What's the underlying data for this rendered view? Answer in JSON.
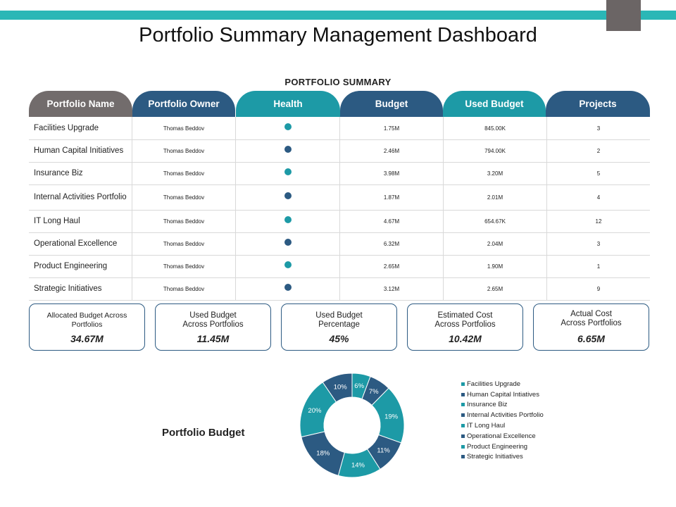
{
  "title": "Portfolio Summary Management Dashboard",
  "section_label": "PORTFOLIO SUMMARY",
  "colors": {
    "teal": "#1d9aa6",
    "navy": "#2c5a82",
    "gray": "#726c6c",
    "topbar": "#2ab7b6"
  },
  "columns": [
    {
      "label": "Portfolio Name",
      "color": "#726c6c"
    },
    {
      "label": "Portfolio Owner",
      "color": "#2c5a82"
    },
    {
      "label": "Health",
      "color": "#1d9aa6"
    },
    {
      "label": "Budget",
      "color": "#2c5a82"
    },
    {
      "label": "Used Budget",
      "color": "#1d9aa6"
    },
    {
      "label": "Projects",
      "color": "#2c5a82"
    }
  ],
  "rows": [
    {
      "name": "Facilities Upgrade",
      "owner": "Thomas Beddov",
      "health": "#1d9aa6",
      "budget": "1.75M",
      "used": "845.00K",
      "projects": "3"
    },
    {
      "name": "Human Capital Initiatives",
      "owner": "Thomas Beddov",
      "health": "#2c5a82",
      "budget": "2.46M",
      "used": "794.00K",
      "projects": "2"
    },
    {
      "name": "Insurance Biz",
      "owner": "Thomas Beddov",
      "health": "#1d9aa6",
      "budget": "3.98M",
      "used": "3.20M",
      "projects": "5"
    },
    {
      "name": "Internal Activities Portfolio",
      "owner": "Thomas Beddov",
      "health": "#2c5a82",
      "budget": "1.87M",
      "used": "2.01M",
      "projects": "4"
    },
    {
      "name": "IT Long Haul",
      "owner": "Thomas Beddov",
      "health": "#1d9aa6",
      "budget": "4.67M",
      "used": "654.67K",
      "projects": "12"
    },
    {
      "name": "Operational Excellence",
      "owner": "Thomas Beddov",
      "health": "#2c5a82",
      "budget": "6.32M",
      "used": "2.04M",
      "projects": "3"
    },
    {
      "name": "Product Engineering",
      "owner": "Thomas Beddov",
      "health": "#1d9aa6",
      "budget": "2.65M",
      "used": "1.90M",
      "projects": "1"
    },
    {
      "name": "Strategic Initiatives",
      "owner": "Thomas Beddov",
      "health": "#2c5a82",
      "budget": "3.12M",
      "used": "2.65M",
      "projects": "9"
    }
  ],
  "kpis": [
    {
      "label": "Allocated Budget Across Portfolios",
      "value": "34.67M"
    },
    {
      "label": "Used Budget\nAcross Portfolios",
      "value": "11.45M"
    },
    {
      "label": "Used Budget\nPercentage",
      "value": "45%"
    },
    {
      "label": "Estimated Cost\nAcross Portfolios",
      "value": "10.42M"
    },
    {
      "label": "Actual Cost\nAcross Portfolios",
      "value": "6.65M"
    }
  ],
  "chart_data": {
    "type": "pie",
    "title": "Portfolio Budget",
    "donut": true,
    "categories": [
      "Facilities Upgrade",
      "Human Capital Intiatives",
      "Insurance Biz",
      "Internal Activities Portfolio",
      "IT Long Haul",
      "Operational Excellence",
      "Product Engineering",
      "Strategic Initiatives"
    ],
    "values": [
      6,
      7,
      19,
      11,
      14,
      18,
      20,
      10
    ],
    "labels": [
      "6%",
      "7%",
      "19%",
      "11%",
      "14%",
      "18%",
      "20%",
      "10%"
    ],
    "colors": [
      "#1d9aa6",
      "#2c5a82",
      "#1d9aa6",
      "#2c5a82",
      "#1d9aa6",
      "#2c5a82",
      "#1d9aa6",
      "#2c5a82"
    ],
    "legend_position": "right"
  }
}
